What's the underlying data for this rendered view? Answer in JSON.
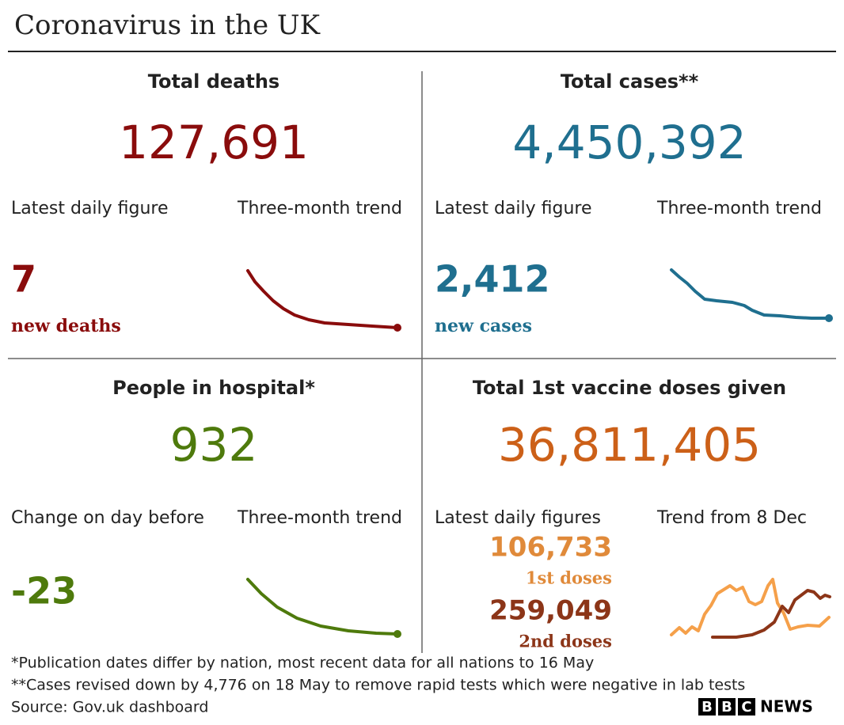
{
  "header": {
    "title": "Coronavirus in the UK"
  },
  "panels": [
    {
      "title": "Total deaths",
      "total": "127,691",
      "left_label": "Latest daily figure",
      "right_label": "Three-month trend",
      "figure": "7",
      "figure_label": "new deaths"
    },
    {
      "title": "Total cases**",
      "total": "4,450,392",
      "left_label": "Latest daily figure",
      "right_label": "Three-month trend",
      "figure": "2,412",
      "figure_label": "new cases"
    },
    {
      "title": "People in hospital*",
      "total": "932",
      "left_label": "Change on day before",
      "right_label": "Three-month trend",
      "figure": "-23"
    },
    {
      "title": "Total 1st vaccine doses given",
      "total": "36,811,405",
      "left_label": "Latest daily figures",
      "right_label": "Trend from 8 Dec",
      "figures": [
        {
          "value": "106,733",
          "label": "1st doses"
        },
        {
          "value": "259,049",
          "label": "2nd doses"
        }
      ]
    }
  ],
  "footer": {
    "notes": [
      "*Publication dates differ by nation, most recent data for all nations to 16 May",
      "**Cases revised down by 4,776 on 18 May to remove rapid tests which were negative in lab tests"
    ],
    "source": "Source: Gov.uk dashboard",
    "logo_letters": [
      "B",
      "B",
      "C"
    ],
    "logo_word": "NEWS"
  }
}
